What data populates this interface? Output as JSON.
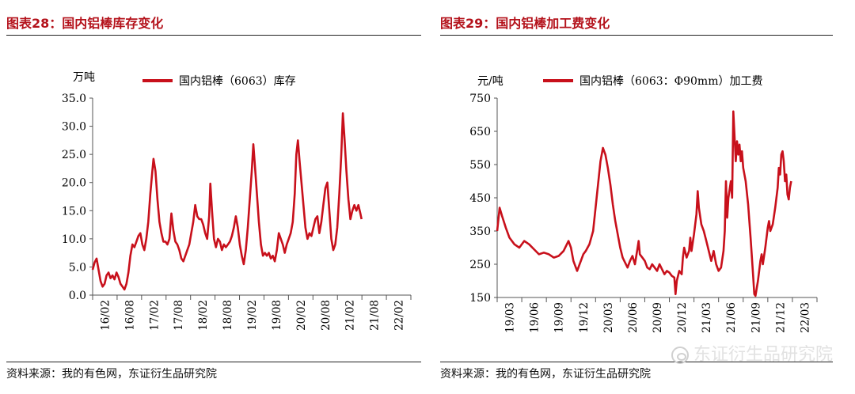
{
  "panels": [
    {
      "figure_title": "图表28：国内铝棒库存变化",
      "source": "资料来源：我的有色网，东证衍生品研究院"
    },
    {
      "figure_title": "图表29：国内铝棒加工费变化",
      "source": "资料来源：我的有色网，东证衍生品研究院"
    }
  ],
  "watermark": "东证衍生品研究院",
  "colors": {
    "line": "#c8101b",
    "title": "#b4121b",
    "axis": "#444444"
  },
  "chart_data": [
    {
      "type": "line",
      "title": "",
      "ylabel": "万吨",
      "xlabel": "",
      "ylim": [
        0,
        35
      ],
      "yticks": [
        "35.0",
        "30.0",
        "25.0",
        "20.0",
        "15.0",
        "10.0",
        "5.0",
        "0.0"
      ],
      "xticks": [
        "16/02",
        "16/08",
        "17/02",
        "17/08",
        "18/02",
        "18/08",
        "19/02",
        "19/08",
        "20/02",
        "20/08",
        "21/02",
        "21/08",
        "22/02"
      ],
      "x_domain": [
        0,
        80
      ],
      "legend_position": "top",
      "series": [
        {
          "name": "国内铝棒（6063）库存",
          "points": [
            [
              0,
              4.5
            ],
            [
              0.5,
              5.8
            ],
            [
              1,
              6.5
            ],
            [
              1.5,
              4.5
            ],
            [
              2,
              2.5
            ],
            [
              2.5,
              1.5
            ],
            [
              3,
              2
            ],
            [
              3.5,
              3.5
            ],
            [
              4,
              4
            ],
            [
              4.5,
              3
            ],
            [
              5,
              3.5
            ],
            [
              5.5,
              2.8
            ],
            [
              6,
              4
            ],
            [
              6.5,
              3.2
            ],
            [
              7,
              2
            ],
            [
              7.5,
              1.5
            ],
            [
              8,
              1
            ],
            [
              8.5,
              2
            ],
            [
              9,
              4
            ],
            [
              9.5,
              7
            ],
            [
              10,
              9
            ],
            [
              10.5,
              8.5
            ],
            [
              11,
              9.5
            ],
            [
              11.5,
              10.5
            ],
            [
              12,
              11
            ],
            [
              12.5,
              9
            ],
            [
              13,
              8
            ],
            [
              13.5,
              10
            ],
            [
              14,
              13
            ],
            [
              14.5,
              18
            ],
            [
              15,
              22
            ],
            [
              15.3,
              24.2
            ],
            [
              15.8,
              22
            ],
            [
              16.3,
              17
            ],
            [
              16.8,
              13
            ],
            [
              17.3,
              11
            ],
            [
              17.8,
              9.5
            ],
            [
              18.3,
              9.5
            ],
            [
              18.8,
              9
            ],
            [
              19.3,
              10
            ],
            [
              19.8,
              14.5
            ],
            [
              20.3,
              11.5
            ],
            [
              20.8,
              9.5
            ],
            [
              21.3,
              9
            ],
            [
              21.8,
              8
            ],
            [
              22.3,
              6.5
            ],
            [
              22.8,
              6
            ],
            [
              23.3,
              7
            ],
            [
              23.8,
              8
            ],
            [
              24.3,
              9
            ],
            [
              24.8,
              11
            ],
            [
              25.3,
              13
            ],
            [
              25.8,
              16
            ],
            [
              26.3,
              14
            ],
            [
              26.8,
              13.5
            ],
            [
              27.3,
              13.5
            ],
            [
              27.8,
              12.5
            ],
            [
              28.3,
              11
            ],
            [
              28.8,
              10
            ],
            [
              29.3,
              14
            ],
            [
              29.6,
              19.8
            ],
            [
              30,
              15
            ],
            [
              30.5,
              10
            ],
            [
              31,
              8.5
            ],
            [
              31.5,
              10
            ],
            [
              32,
              9.5
            ],
            [
              32.5,
              8
            ],
            [
              33,
              9
            ],
            [
              33.5,
              8.5
            ],
            [
              34,
              9
            ],
            [
              34.5,
              9.5
            ],
            [
              35,
              10.5
            ],
            [
              35.5,
              12
            ],
            [
              36,
              14
            ],
            [
              36.5,
              12
            ],
            [
              37,
              9
            ],
            [
              37.5,
              7
            ],
            [
              38,
              5.5
            ],
            [
              38.5,
              8
            ],
            [
              39,
              12
            ],
            [
              39.5,
              17
            ],
            [
              40,
              22
            ],
            [
              40.4,
              26.8
            ],
            [
              40.8,
              23
            ],
            [
              41.3,
              18
            ],
            [
              41.8,
              13
            ],
            [
              42.3,
              9
            ],
            [
              42.8,
              7
            ],
            [
              43.3,
              7.5
            ],
            [
              43.8,
              7
            ],
            [
              44.3,
              7.5
            ],
            [
              44.8,
              6.5
            ],
            [
              45.3,
              7
            ],
            [
              45.8,
              6
            ],
            [
              46.3,
              8
            ],
            [
              46.8,
              11
            ],
            [
              47.3,
              10
            ],
            [
              47.8,
              9
            ],
            [
              48.3,
              7.5
            ],
            [
              48.8,
              9
            ],
            [
              49.3,
              10
            ],
            [
              49.8,
              11
            ],
            [
              50.3,
              13
            ],
            [
              50.8,
              18
            ],
            [
              51.2,
              25
            ],
            [
              51.6,
              27.5
            ],
            [
              52,
              24
            ],
            [
              52.5,
              20
            ],
            [
              53,
              16
            ],
            [
              53.5,
              12
            ],
            [
              54,
              10
            ],
            [
              54.5,
              11
            ],
            [
              55,
              10.5
            ],
            [
              55.5,
              12
            ],
            [
              56,
              13.5
            ],
            [
              56.5,
              14
            ],
            [
              57,
              11
            ],
            [
              57.5,
              13
            ],
            [
              58,
              16
            ],
            [
              58.5,
              19
            ],
            [
              59,
              20
            ],
            [
              59.5,
              15
            ],
            [
              60,
              10
            ],
            [
              60.5,
              8
            ],
            [
              61,
              9
            ],
            [
              61.5,
              12
            ],
            [
              62,
              18
            ],
            [
              62.5,
              25
            ],
            [
              62.9,
              32.3
            ],
            [
              63.3,
              28
            ],
            [
              63.8,
              22
            ],
            [
              64.3,
              17
            ],
            [
              64.8,
              13.5
            ],
            [
              65.3,
              15
            ],
            [
              65.8,
              16
            ],
            [
              66.3,
              15
            ],
            [
              66.8,
              16
            ],
            [
              67.3,
              14.5
            ],
            [
              67.6,
              13.5
            ]
          ]
        }
      ]
    },
    {
      "type": "line",
      "title": "",
      "ylabel": "元/吨",
      "xlabel": "",
      "ylim": [
        150,
        750
      ],
      "yticks": [
        "750",
        "650",
        "550",
        "450",
        "350",
        "250",
        "150"
      ],
      "xticks": [
        "19/03",
        "19/06",
        "19/09",
        "19/12",
        "20/03",
        "20/06",
        "20/09",
        "20/12",
        "21/03",
        "21/06",
        "21/09",
        "21/12",
        "22/03"
      ],
      "x_domain": [
        0,
        13
      ],
      "legend_position": "top",
      "series": [
        {
          "name": "国内铝棒（6063：Φ90mm）加工费",
          "points": [
            [
              0,
              350
            ],
            [
              0.1,
              420
            ],
            [
              0.2,
              395
            ],
            [
              0.35,
              360
            ],
            [
              0.5,
              330
            ],
            [
              0.7,
              310
            ],
            [
              0.9,
              300
            ],
            [
              1.1,
              320
            ],
            [
              1.3,
              310
            ],
            [
              1.5,
              295
            ],
            [
              1.7,
              280
            ],
            [
              1.9,
              285
            ],
            [
              2.1,
              280
            ],
            [
              2.3,
              270
            ],
            [
              2.5,
              275
            ],
            [
              2.7,
              290
            ],
            [
              2.9,
              320
            ],
            [
              3.0,
              300
            ],
            [
              3.1,
              260
            ],
            [
              3.25,
              230
            ],
            [
              3.4,
              260
            ],
            [
              3.5,
              280
            ],
            [
              3.6,
              290
            ],
            [
              3.75,
              310
            ],
            [
              3.9,
              350
            ],
            [
              4.0,
              420
            ],
            [
              4.1,
              490
            ],
            [
              4.2,
              560
            ],
            [
              4.3,
              600
            ],
            [
              4.4,
              580
            ],
            [
              4.5,
              540
            ],
            [
              4.6,
              490
            ],
            [
              4.7,
              430
            ],
            [
              4.8,
              380
            ],
            [
              4.9,
              340
            ],
            [
              5.0,
              300
            ],
            [
              5.1,
              270
            ],
            [
              5.2,
              255
            ],
            [
              5.3,
              240
            ],
            [
              5.4,
              260
            ],
            [
              5.5,
              275
            ],
            [
              5.6,
              250
            ],
            [
              5.7,
              295
            ],
            [
              5.75,
              320
            ],
            [
              5.8,
              280
            ],
            [
              5.9,
              270
            ],
            [
              6.0,
              260
            ],
            [
              6.1,
              240
            ],
            [
              6.2,
              235
            ],
            [
              6.3,
              250
            ],
            [
              6.4,
              240
            ],
            [
              6.5,
              230
            ],
            [
              6.6,
              250
            ],
            [
              6.7,
              235
            ],
            [
              6.8,
              220
            ],
            [
              6.9,
              230
            ],
            [
              7.0,
              225
            ],
            [
              7.1,
              215
            ],
            [
              7.2,
              210
            ],
            [
              7.25,
              160
            ],
            [
              7.3,
              200
            ],
            [
              7.4,
              230
            ],
            [
              7.5,
              220
            ],
            [
              7.55,
              270
            ],
            [
              7.6,
              300
            ],
            [
              7.7,
              270
            ],
            [
              7.8,
              290
            ],
            [
              7.85,
              330
            ],
            [
              7.9,
              290
            ],
            [
              8.0,
              340
            ],
            [
              8.1,
              400
            ],
            [
              8.15,
              470
            ],
            [
              8.2,
              420
            ],
            [
              8.3,
              370
            ],
            [
              8.4,
              350
            ],
            [
              8.5,
              320
            ],
            [
              8.6,
              290
            ],
            [
              8.7,
              260
            ],
            [
              8.8,
              290
            ],
            [
              8.9,
              250
            ],
            [
              9.0,
              230
            ],
            [
              9.1,
              240
            ],
            [
              9.2,
              290
            ],
            [
              9.25,
              350
            ],
            [
              9.3,
              500
            ],
            [
              9.35,
              390
            ],
            [
              9.4,
              450
            ],
            [
              9.5,
              500
            ],
            [
              9.55,
              450
            ],
            [
              9.6,
              710
            ],
            [
              9.7,
              560
            ],
            [
              9.75,
              620
            ],
            [
              9.8,
              580
            ],
            [
              9.85,
              610
            ],
            [
              9.9,
              560
            ],
            [
              9.95,
              590
            ],
            [
              10.0,
              540
            ],
            [
              10.1,
              500
            ],
            [
              10.2,
              430
            ],
            [
              10.3,
              330
            ],
            [
              10.4,
              220
            ],
            [
              10.45,
              160
            ],
            [
              10.5,
              155
            ],
            [
              10.6,
              200
            ],
            [
              10.7,
              260
            ],
            [
              10.75,
              280
            ],
            [
              10.8,
              250
            ],
            [
              10.9,
              300
            ],
            [
              11.0,
              360
            ],
            [
              11.05,
              380
            ],
            [
              11.1,
              350
            ],
            [
              11.2,
              370
            ],
            [
              11.3,
              420
            ],
            [
              11.4,
              480
            ],
            [
              11.45,
              540
            ],
            [
              11.5,
              520
            ],
            [
              11.55,
              580
            ],
            [
              11.6,
              590
            ],
            [
              11.65,
              560
            ],
            [
              11.7,
              500
            ],
            [
              11.75,
              520
            ],
            [
              11.8,
              460
            ],
            [
              11.85,
              445
            ],
            [
              11.9,
              480
            ],
            [
              11.95,
              500
            ]
          ]
        }
      ]
    }
  ]
}
